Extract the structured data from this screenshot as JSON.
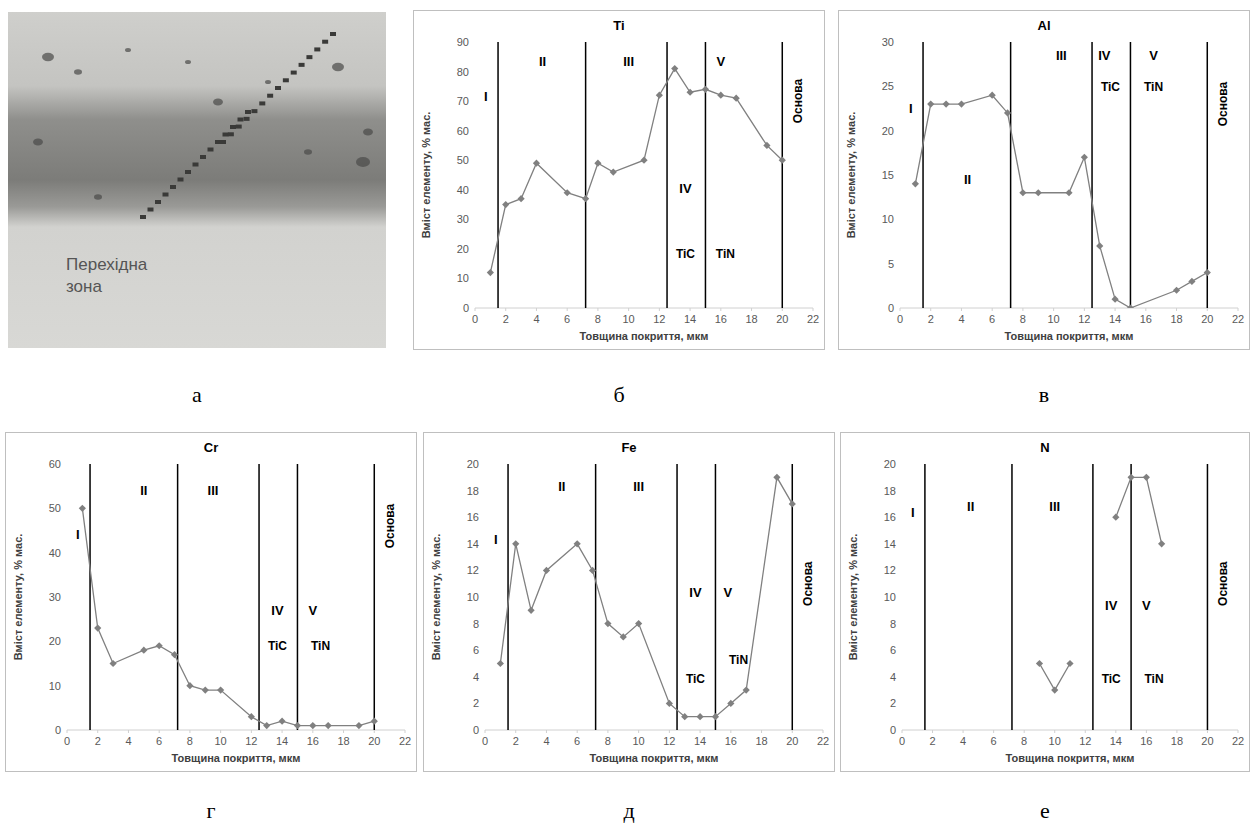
{
  "chart_data": [
    {
      "type": "line",
      "title": "Ti",
      "x_label": "Товщина покриття, мкм",
      "y_label": "Вміст елементу, % мас.",
      "x": [
        1,
        2,
        3,
        4,
        6,
        7.2,
        8,
        9,
        11,
        12,
        13,
        14,
        15,
        16,
        17,
        19,
        20
      ],
      "values": [
        12,
        35,
        37,
        49,
        39,
        37,
        49,
        46,
        50,
        72,
        81,
        73,
        74,
        72,
        71,
        55,
        50
      ],
      "color": "#808080",
      "marker": "diamond",
      "line_style": "solid",
      "grid": false,
      "xlim": [
        0,
        22
      ],
      "xticks": [
        0,
        2,
        4,
        6,
        8,
        10,
        12,
        14,
        16,
        18,
        20,
        22
      ],
      "ylim": [
        0,
        90
      ],
      "yticks": [
        0,
        10,
        20,
        30,
        40,
        50,
        60,
        70,
        80,
        90
      ],
      "zone_lines": [
        1.5,
        7.2,
        12.5,
        15,
        20
      ],
      "annotations": [
        {
          "text": "I",
          "x": 0.7,
          "y": 70
        },
        {
          "text": "II",
          "x": 4.4,
          "y": 82
        },
        {
          "text": "III",
          "x": 10,
          "y": 82
        },
        {
          "text": "IV",
          "x": 13.7,
          "y": 39
        },
        {
          "text": "V",
          "x": 16,
          "y": 82
        },
        {
          "text": "TiC",
          "x": 13.7,
          "y": 17
        },
        {
          "text": "TiN",
          "x": 16.3,
          "y": 17
        },
        {
          "text": "Основа",
          "x": 21.1,
          "y": 70
        }
      ]
    },
    {
      "type": "line",
      "title": "Al",
      "x_label": "Товщина покриття, мкм",
      "y_label": "Вміст елементу, % мас.",
      "x": [
        1,
        2,
        3,
        4,
        6,
        7,
        8,
        9,
        11,
        12,
        13,
        14,
        15,
        18,
        19,
        20
      ],
      "values": [
        14,
        23,
        23,
        23,
        24,
        22,
        13,
        13,
        13,
        17,
        7,
        1,
        0,
        2,
        3,
        4
      ],
      "color": "#808080",
      "marker": "diamond",
      "line_style": "solid",
      "grid": false,
      "xlim": [
        0,
        22
      ],
      "xticks": [
        0,
        2,
        4,
        6,
        8,
        10,
        12,
        14,
        16,
        18,
        20,
        22
      ],
      "ylim": [
        0,
        30
      ],
      "yticks": [
        0,
        5,
        10,
        15,
        20,
        25,
        30
      ],
      "zone_lines": [
        1.5,
        7.2,
        12.5,
        15,
        20
      ],
      "annotations": [
        {
          "text": "I",
          "x": 0.7,
          "y": 22
        },
        {
          "text": "II",
          "x": 4.4,
          "y": 14
        },
        {
          "text": "III",
          "x": 10.5,
          "y": 28
        },
        {
          "text": "IV",
          "x": 13.3,
          "y": 28
        },
        {
          "text": "V",
          "x": 16.5,
          "y": 28
        },
        {
          "text": "TiC",
          "x": 13.7,
          "y": 24.5
        },
        {
          "text": "TiN",
          "x": 16.5,
          "y": 24.5
        },
        {
          "text": "Основа",
          "x": 21.1,
          "y": 23
        }
      ]
    },
    {
      "type": "line",
      "title": "Cr",
      "x_label": "Товщина покриття, мкм",
      "y_label": "Вміст елементу, % мас.",
      "x": [
        1,
        2,
        3,
        5,
        6,
        7,
        8,
        9,
        10,
        12,
        13,
        14,
        15,
        16,
        17,
        19,
        20
      ],
      "values": [
        50,
        23,
        15,
        18,
        19,
        17,
        10,
        9,
        9,
        3,
        1,
        2,
        1,
        1,
        1,
        1,
        2
      ],
      "color": "#808080",
      "marker": "diamond",
      "line_style": "solid",
      "grid": false,
      "xlim": [
        0,
        22
      ],
      "xticks": [
        0,
        2,
        4,
        6,
        8,
        10,
        12,
        14,
        16,
        18,
        20,
        22
      ],
      "ylim": [
        0,
        60
      ],
      "yticks": [
        0,
        10,
        20,
        30,
        40,
        50,
        60
      ],
      "zone_lines": [
        1.5,
        7.2,
        12.5,
        15,
        20
      ],
      "annotations": [
        {
          "text": "I",
          "x": 0.7,
          "y": 43
        },
        {
          "text": "II",
          "x": 5,
          "y": 53
        },
        {
          "text": "III",
          "x": 9.5,
          "y": 53
        },
        {
          "text": "IV",
          "x": 13.7,
          "y": 26
        },
        {
          "text": "V",
          "x": 16,
          "y": 26
        },
        {
          "text": "TiC",
          "x": 13.7,
          "y": 18
        },
        {
          "text": "TiN",
          "x": 16.5,
          "y": 18
        },
        {
          "text": "Основа",
          "x": 21.1,
          "y": 46
        }
      ]
    },
    {
      "type": "line",
      "title": "Fe",
      "x_label": "Товщина покриття, мкм",
      "y_label": "Вміст елементу, % мас.",
      "x": [
        1,
        2,
        3,
        4,
        6,
        7,
        8,
        9,
        10,
        12,
        13,
        14,
        15,
        16,
        17,
        19,
        20
      ],
      "values": [
        5,
        14,
        9,
        12,
        14,
        12,
        8,
        7,
        8,
        2,
        1,
        1,
        1,
        2,
        3,
        19,
        17
      ],
      "color": "#808080",
      "marker": "diamond",
      "line_style": "solid",
      "grid": false,
      "xlim": [
        0,
        22
      ],
      "xticks": [
        0,
        2,
        4,
        6,
        8,
        10,
        12,
        14,
        16,
        18,
        20,
        22
      ],
      "ylim": [
        0,
        20
      ],
      "yticks": [
        0,
        2,
        4,
        6,
        8,
        10,
        12,
        14,
        16,
        18,
        20
      ],
      "zone_lines": [
        1.5,
        7.2,
        12.5,
        15,
        20
      ],
      "annotations": [
        {
          "text": "I",
          "x": 0.7,
          "y": 14
        },
        {
          "text": "II",
          "x": 5,
          "y": 18
        },
        {
          "text": "III",
          "x": 10,
          "y": 18
        },
        {
          "text": "IV",
          "x": 13.7,
          "y": 10
        },
        {
          "text": "V",
          "x": 15.8,
          "y": 10
        },
        {
          "text": "TiC",
          "x": 13.7,
          "y": 3.5
        },
        {
          "text": "TiN",
          "x": 16.5,
          "y": 5
        },
        {
          "text": "Основа",
          "x": 21.1,
          "y": 11
        }
      ]
    },
    {
      "type": "line",
      "title": "N",
      "x_label": "Товщина покриття, мкм",
      "y_label": "Вміст елементу, % мас.",
      "x": [
        9,
        10,
        11,
        12.5,
        14,
        15,
        16,
        17
      ],
      "values": [
        5,
        3,
        5,
        null,
        16,
        19,
        19,
        14
      ],
      "color": "#808080",
      "marker": "diamond",
      "line_style": "solid",
      "grid": false,
      "xlim": [
        0,
        22
      ],
      "xticks": [
        0,
        2,
        4,
        6,
        8,
        10,
        12,
        14,
        16,
        18,
        20,
        22
      ],
      "ylim": [
        0,
        20
      ],
      "yticks": [
        0,
        2,
        4,
        6,
        8,
        10,
        12,
        14,
        16,
        18,
        20
      ],
      "zone_lines": [
        1.5,
        7.2,
        12.5,
        15,
        20
      ],
      "annotations": [
        {
          "text": "I",
          "x": 0.7,
          "y": 16
        },
        {
          "text": "II",
          "x": 4.5,
          "y": 16.5
        },
        {
          "text": "III",
          "x": 10,
          "y": 16.5
        },
        {
          "text": "IV",
          "x": 13.7,
          "y": 9
        },
        {
          "text": "V",
          "x": 16,
          "y": 9
        },
        {
          "text": "TiC",
          "x": 13.7,
          "y": 3.5
        },
        {
          "text": "TiN",
          "x": 16.5,
          "y": 3.5
        },
        {
          "text": "Основа",
          "x": 21.1,
          "y": 11
        }
      ]
    }
  ],
  "image": {
    "label": "Перехідна зона"
  },
  "panel_letters": [
    "а",
    "б",
    "в",
    "г",
    "д",
    "е"
  ]
}
